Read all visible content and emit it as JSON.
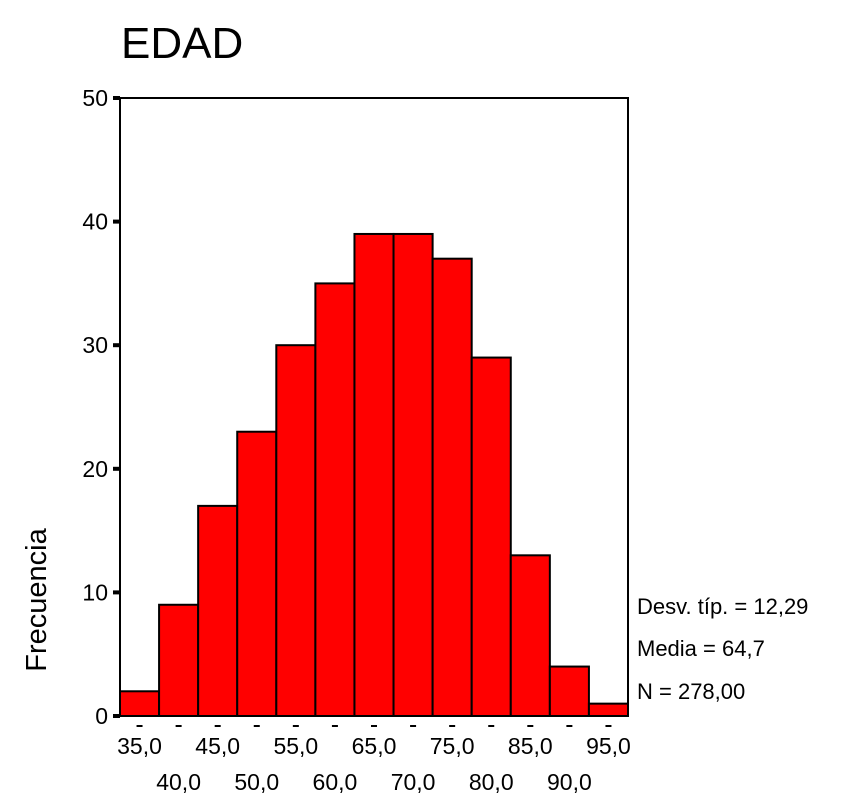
{
  "chart_data": {
    "type": "bar",
    "title": "EDAD",
    "xlabel": "",
    "ylabel": "Frecuencia",
    "ylim": [
      0,
      50
    ],
    "yticks": [
      0,
      10,
      20,
      30,
      40,
      50
    ],
    "x_tick_labels_row1": [
      "35,0",
      "45,0",
      "55,0",
      "65,0",
      "75,0",
      "85,0",
      "95,0"
    ],
    "x_tick_labels_row2": [
      "40,0",
      "50,0",
      "60,0",
      "70,0",
      "80,0",
      "90,0"
    ],
    "bin_centers": [
      35,
      40,
      45,
      50,
      55,
      60,
      65,
      70,
      75,
      80,
      85,
      90,
      95
    ],
    "values": [
      2,
      9,
      17,
      23,
      30,
      35,
      39,
      39,
      37,
      29,
      13,
      4,
      1
    ],
    "bar_color": "#ff0000",
    "grid": false,
    "stats": {
      "std": "Desv. típ. = 12,29",
      "mean": "Media = 64,7",
      "n": "N = 278,00"
    }
  }
}
